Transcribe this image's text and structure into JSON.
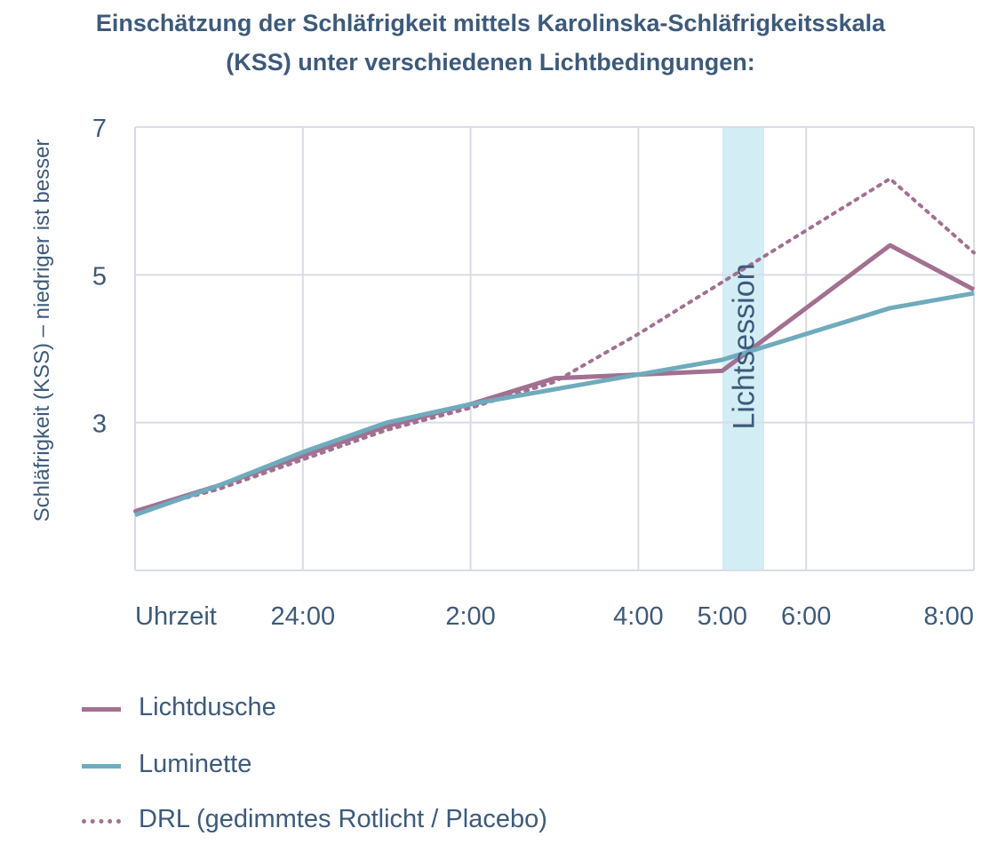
{
  "title": {
    "line1": "Einschätzung der Schläfrigkeit mittels Karolinska-Schläfrigkeitsskala",
    "line2": "(KSS) unter verschiedenen Lichtbedingungen:"
  },
  "colors": {
    "lichtdusche": "#a27090",
    "luminette": "#6fabbd",
    "drl": "#a27090",
    "session_band": "#d3edf5",
    "grid": "#d7dde6",
    "text": "#3d5a7a"
  },
  "chart_data": {
    "type": "line",
    "title": "Einschätzung der Schläfrigkeit mittels Karolinska-Schläfrigkeitsskala (KSS) unter verschiedenen Lichtbedingungen:",
    "xlabel": "Uhrzeit",
    "ylabel": "Schläfrigkeit (KSS) – niedriger ist besser",
    "x_unit": "hours after 22:00",
    "xlim": [
      0,
      10
    ],
    "ylim": [
      1,
      7
    ],
    "x_ticks": [
      {
        "x": 2,
        "label": "24:00"
      },
      {
        "x": 4,
        "label": "2:00"
      },
      {
        "x": 6,
        "label": "4:00"
      },
      {
        "x": 7,
        "label": "5:00"
      },
      {
        "x": 8,
        "label": "6:00"
      },
      {
        "x": 10,
        "label": "8:00"
      }
    ],
    "y_ticks": [
      3,
      5,
      7
    ],
    "grid": true,
    "legend_position": "bottom",
    "annotation": {
      "label": "Lichtsession",
      "x_start": 7,
      "x_end": 7.5
    },
    "series": [
      {
        "name": "Lichtdusche",
        "style": "solid",
        "x": [
          0,
          1,
          2,
          3,
          4,
          5,
          6,
          7,
          8,
          9,
          10
        ],
        "y": [
          1.8,
          2.15,
          2.55,
          2.95,
          3.25,
          3.6,
          3.65,
          3.7,
          4.55,
          5.4,
          4.8
        ]
      },
      {
        "name": "Luminette",
        "style": "solid",
        "x": [
          0,
          1,
          2,
          3,
          4,
          5,
          6,
          7,
          8,
          9,
          10
        ],
        "y": [
          1.75,
          2.15,
          2.6,
          3.0,
          3.25,
          3.45,
          3.65,
          3.85,
          4.2,
          4.55,
          4.75
        ]
      },
      {
        "name": "DRL (gedimmtes Rotlicht / Placebo)",
        "style": "dotted",
        "x": [
          0,
          1,
          2,
          3,
          4,
          5,
          6,
          7,
          8,
          9,
          10
        ],
        "y": [
          1.8,
          2.1,
          2.5,
          2.9,
          3.2,
          3.55,
          4.2,
          4.9,
          5.6,
          6.3,
          5.3
        ]
      }
    ]
  },
  "legend": {
    "items": [
      {
        "label": "Lichtdusche",
        "style": "solid",
        "color": "#a27090"
      },
      {
        "label": "Luminette",
        "style": "solid",
        "color": "#6fabbd"
      },
      {
        "label": "DRL (gedimmtes Rotlicht / Placebo)",
        "style": "dotted",
        "color": "#a27090"
      }
    ]
  }
}
